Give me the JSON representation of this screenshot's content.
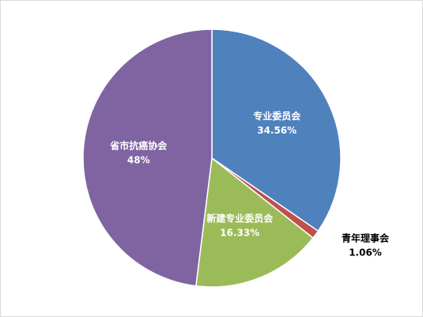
{
  "chart_data": {
    "type": "pie",
    "categories": [
      "专业委员会",
      "青年理事会",
      "新建专业委员会",
      "省市抗癌协会"
    ],
    "values": [
      34.56,
      1.06,
      16.33,
      48
    ],
    "value_labels": [
      "34.56%",
      "1.06%",
      "16.33%",
      "48%"
    ],
    "colors": [
      "#4f81bd",
      "#c0504d",
      "#9bbb59",
      "#8064a2"
    ]
  }
}
